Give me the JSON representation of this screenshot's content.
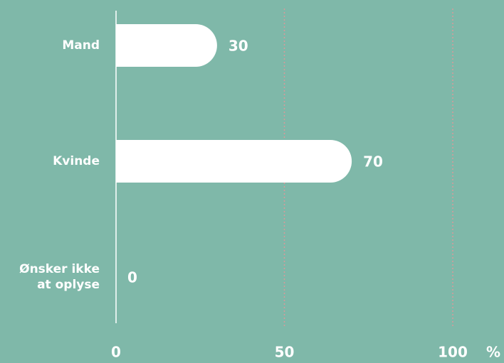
{
  "chart_data": {
    "type": "bar",
    "orientation": "horizontal",
    "categories": [
      "Mand",
      "Kvinde",
      "Ønsker ikke\nat oplyse"
    ],
    "values": [
      30,
      70,
      0
    ],
    "color": "#ffffff",
    "xlim": [
      0,
      100
    ],
    "xticks": [
      0,
      50,
      100
    ],
    "unit": "%",
    "grid": true
  }
}
